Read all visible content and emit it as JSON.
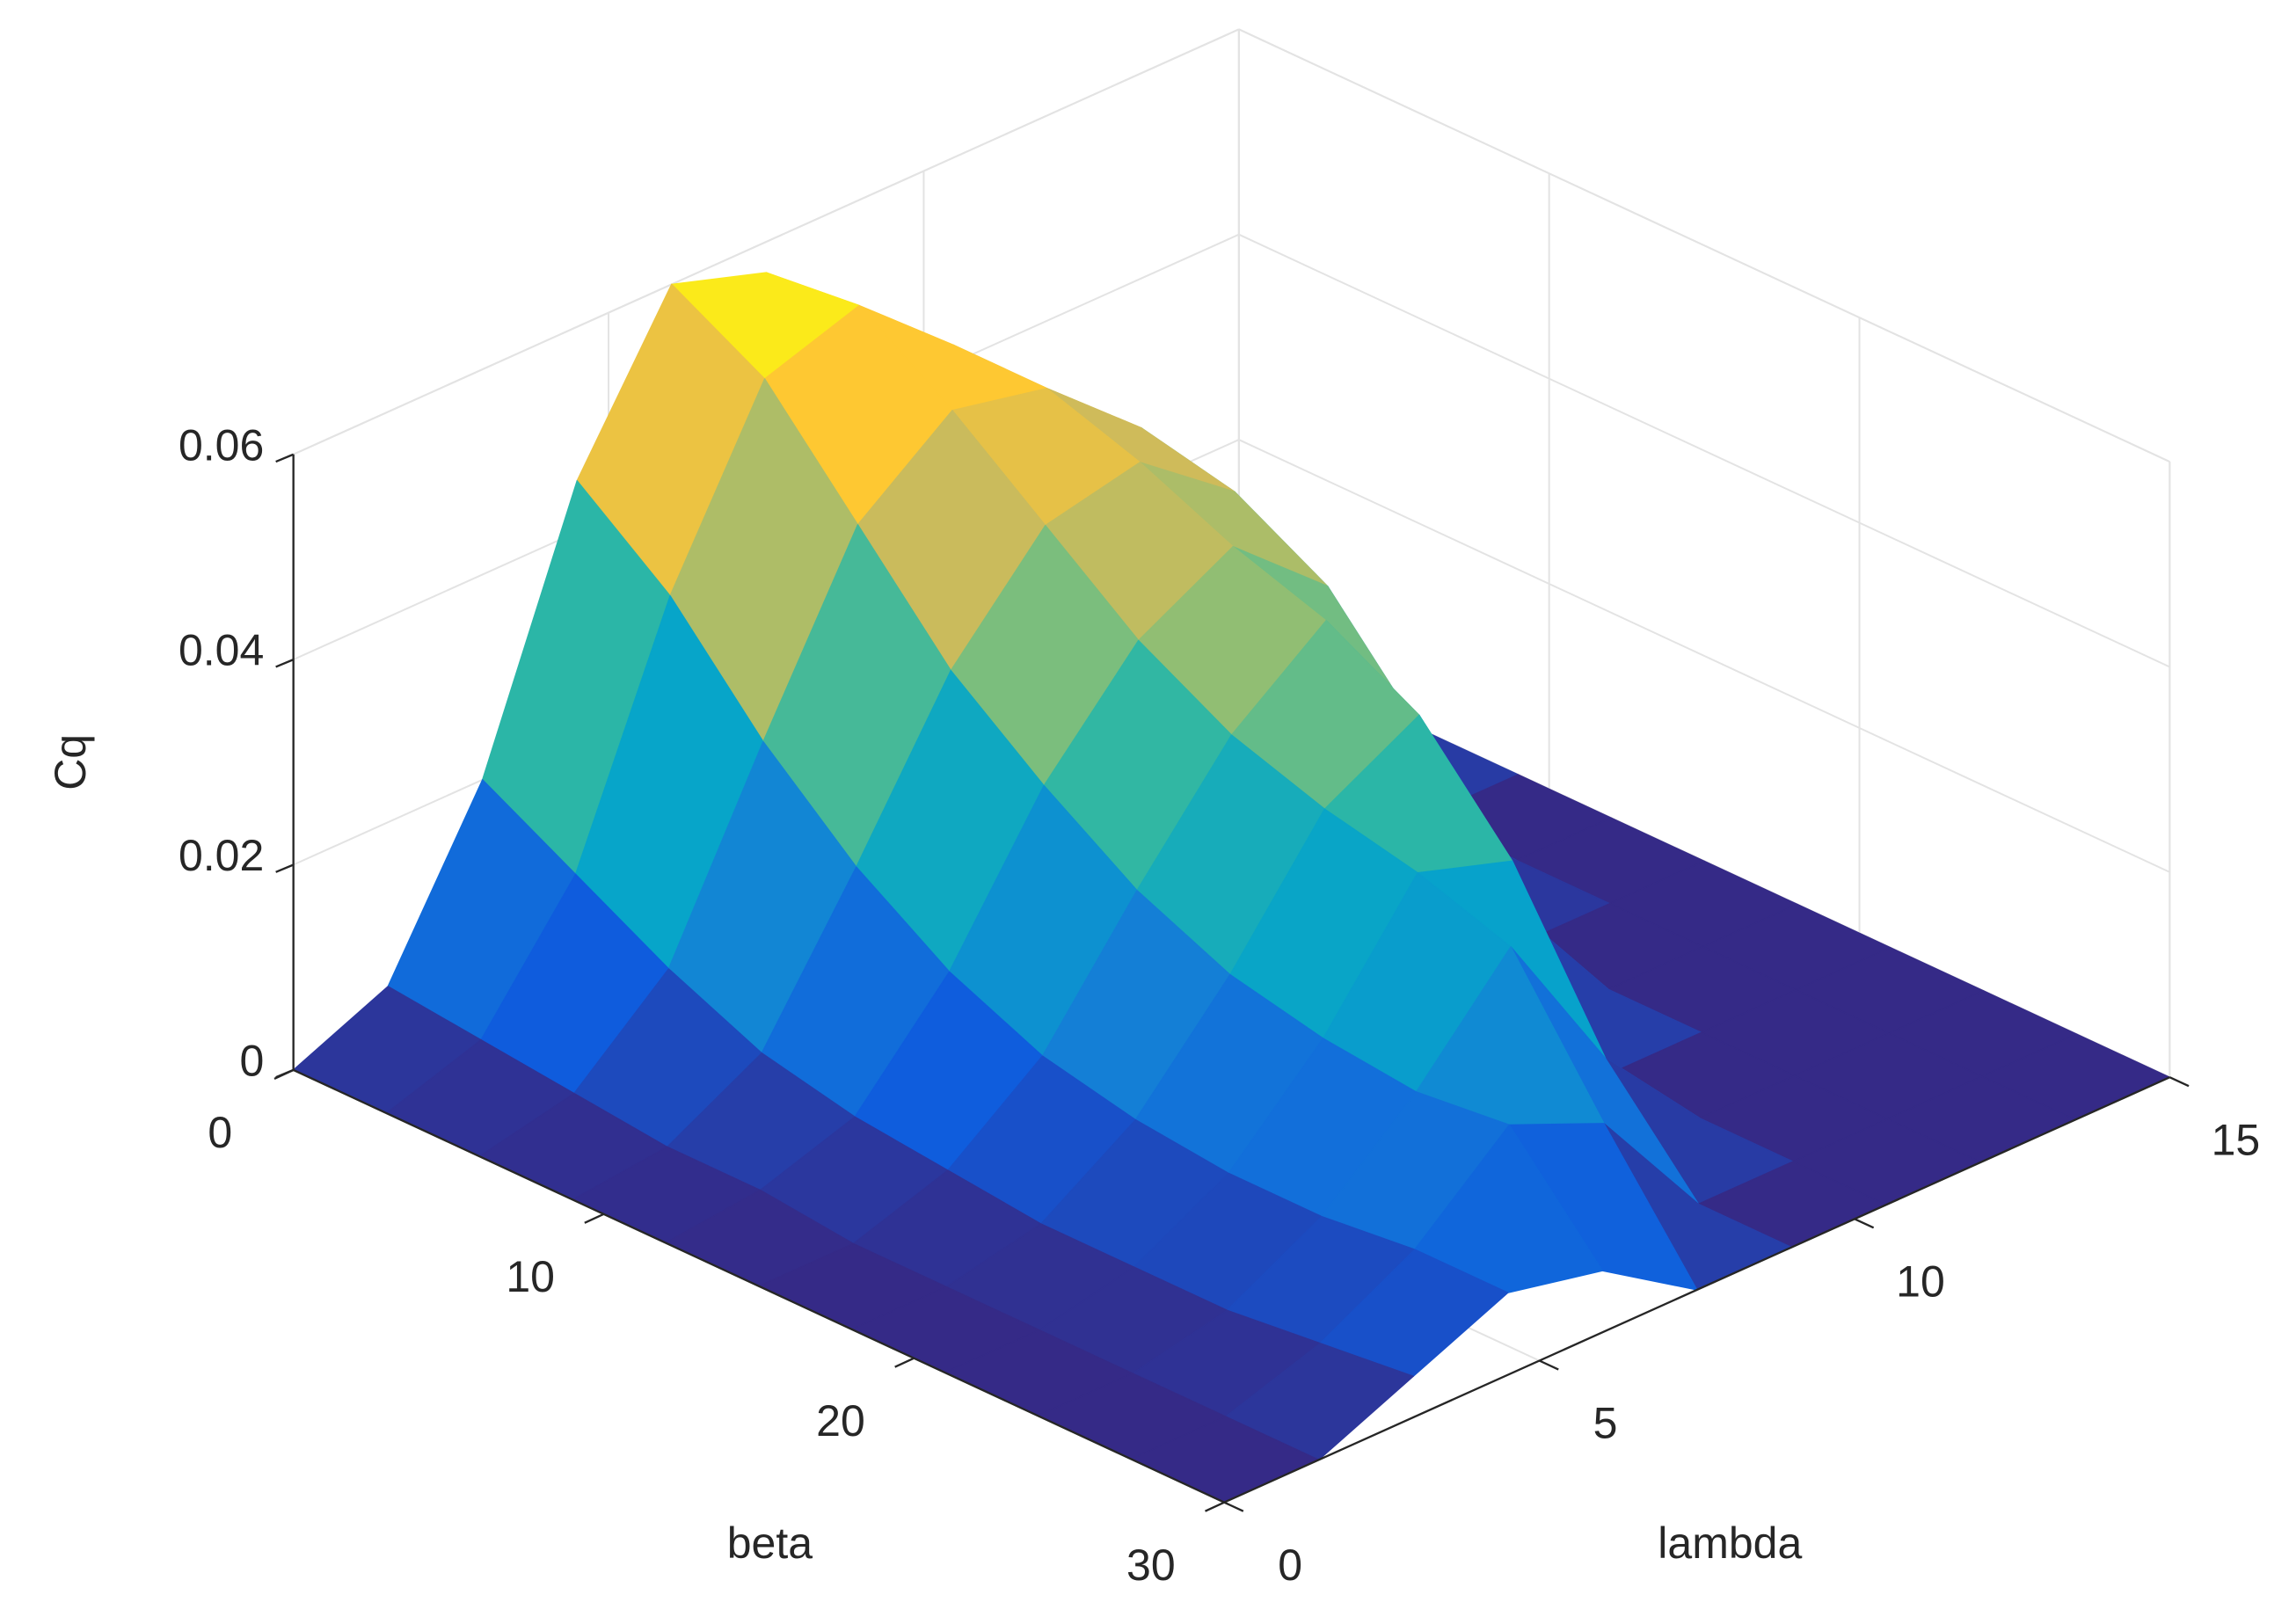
{
  "chart_data": {
    "type": "surface",
    "xlabel": "beta",
    "ylabel": "lambda",
    "zlabel": "Cq",
    "xlim": [
      0,
      30
    ],
    "ylim": [
      0,
      15
    ],
    "zlim": [
      0,
      0.06
    ],
    "xticks": [
      0,
      10,
      20,
      30
    ],
    "yticks": [
      0,
      5,
      10,
      15
    ],
    "zticks": [
      0,
      0.02,
      0.04,
      0.06
    ],
    "grid": true,
    "colormap": [
      "#352a87",
      "#0f5cdd",
      "#1481d6",
      "#06a4ca",
      "#2eb7a4",
      "#87bf77",
      "#d1bb59",
      "#fec832",
      "#f9fb0e"
    ],
    "x": [
      0,
      3,
      6,
      9,
      12,
      15,
      18,
      21,
      24,
      27,
      30
    ],
    "y": [
      0,
      1.5,
      3,
      4.5,
      6,
      7.5,
      9,
      10.5,
      12,
      13.5,
      15
    ],
    "z": [
      [
        0,
        0.004,
        0.02,
        0.045,
        0.06,
        0.057,
        0.048,
        0.038,
        0.028,
        0.018,
        0.012
      ],
      [
        0,
        0.003,
        0.015,
        0.038,
        0.055,
        0.058,
        0.05,
        0.04,
        0.03,
        0.015,
        0.003
      ],
      [
        0,
        0.002,
        0.01,
        0.028,
        0.045,
        0.052,
        0.05,
        0.042,
        0.028,
        0.01,
        0
      ],
      [
        0,
        0.001,
        0.006,
        0.02,
        0.035,
        0.045,
        0.047,
        0.04,
        0.02,
        0,
        0
      ],
      [
        0,
        0.001,
        0.004,
        0.014,
        0.028,
        0.038,
        0.043,
        0.035,
        0.008,
        0,
        0
      ],
      [
        0,
        0,
        0.003,
        0.01,
        0.022,
        0.033,
        0.04,
        0.025,
        0,
        0,
        0
      ],
      [
        0,
        0,
        0.002,
        0.008,
        0.018,
        0.03,
        0.035,
        0.012,
        0,
        0,
        0
      ],
      [
        0,
        0,
        0.002,
        0.007,
        0.016,
        0.028,
        0.025,
        0,
        0,
        0,
        0
      ],
      [
        0,
        0,
        0.002,
        0.007,
        0.015,
        0.025,
        0.01,
        0,
        0,
        0,
        0
      ],
      [
        0,
        0,
        0.003,
        0.008,
        0.016,
        0.012,
        0,
        0,
        0,
        0,
        0
      ],
      [
        0,
        0,
        0.004,
        0.008,
        0.006,
        0,
        0,
        0,
        0,
        0,
        0
      ]
    ]
  }
}
